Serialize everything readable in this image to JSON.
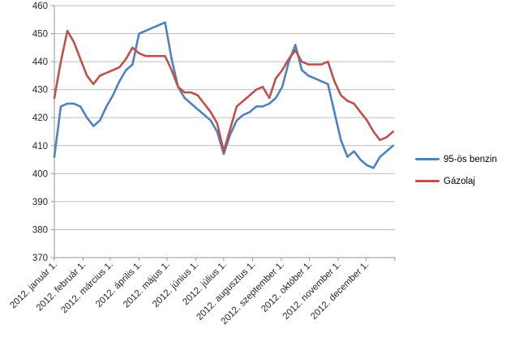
{
  "chart_data": {
    "type": "line",
    "title": "",
    "grid": "horizontal",
    "y_axis": {
      "min": 370,
      "max": 460,
      "step": 10,
      "tick_labels": [
        "370",
        "380",
        "390",
        "400",
        "410",
        "420",
        "430",
        "440",
        "450",
        "460"
      ]
    },
    "x_axis": {
      "days_total": 366,
      "month_start_days": [
        0,
        31,
        60,
        91,
        121,
        152,
        182,
        213,
        244,
        274,
        305,
        335
      ],
      "tick_labels": [
        "2012. január 1.",
        "2012. február 1.",
        "2012. március 1.",
        "2012. április 1.",
        "2012. május 1.",
        "2012. június 1.",
        "2012. július 1.",
        "2012. augusztus 1.",
        "2012. szeptember 1.",
        "2012. október 1.",
        "2012. november 1.",
        "2012. december 1."
      ]
    },
    "series": [
      {
        "id": "benzin",
        "name": "95-ös benzin",
        "color": "#4F81BD",
        "interval_days": 7,
        "values": [
          406,
          424,
          425,
          425,
          424,
          420,
          417,
          419,
          424,
          428,
          433,
          437,
          439,
          450,
          451,
          452,
          453,
          454,
          441,
          431,
          427,
          425,
          423,
          421,
          419,
          415,
          407,
          414,
          419,
          421,
          422,
          424,
          424,
          425,
          427,
          431,
          440,
          446,
          437,
          435,
          434,
          433,
          432,
          422,
          412,
          406,
          408,
          405,
          403,
          402,
          406,
          408,
          410
        ]
      },
      {
        "id": "gazolaj",
        "name": "Gázolaj",
        "color": "#C0504D",
        "interval_days": 7,
        "values": [
          427,
          440,
          451,
          447,
          441,
          435,
          432,
          435,
          436,
          437,
          438,
          441,
          445,
          443,
          442,
          442,
          442,
          442,
          437,
          431,
          429,
          429,
          428,
          425,
          422,
          418,
          408,
          416,
          424,
          426,
          428,
          430,
          431,
          427,
          434,
          437,
          441,
          444,
          440,
          439,
          439,
          439,
          440,
          433,
          428,
          426,
          425,
          422,
          419,
          415,
          412,
          413,
          415
        ]
      }
    ],
    "legend": {
      "position": "right"
    },
    "colors": {
      "gridline": "#BFBFBF",
      "axis": "#969696",
      "text": "#262626"
    }
  }
}
